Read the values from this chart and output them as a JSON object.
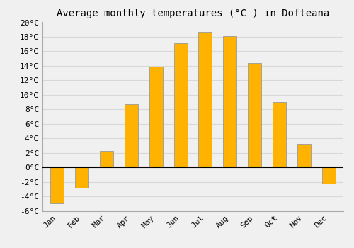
{
  "title": "Average monthly temperatures (°C ) in Dofteana",
  "months": [
    "Jan",
    "Feb",
    "Mar",
    "Apr",
    "May",
    "Jun",
    "Jul",
    "Aug",
    "Sep",
    "Oct",
    "Nov",
    "Dec"
  ],
  "values": [
    -5.0,
    -2.8,
    2.3,
    8.7,
    13.9,
    17.1,
    18.7,
    18.1,
    14.4,
    9.0,
    3.2,
    -2.2
  ],
  "bar_color_top": "#FFBB33",
  "bar_color_bottom": "#FFA500",
  "bar_edge_color": "#999999",
  "ylim": [
    -6,
    20
  ],
  "yticks": [
    -6,
    -4,
    -2,
    0,
    2,
    4,
    6,
    8,
    10,
    12,
    14,
    16,
    18,
    20
  ],
  "ytick_labels": [
    "-6°C",
    "-4°C",
    "-2°C",
    "0°C",
    "2°C",
    "4°C",
    "6°C",
    "8°C",
    "10°C",
    "12°C",
    "14°C",
    "16°C",
    "18°C",
    "20°C"
  ],
  "background_color": "#f0f0f0",
  "grid_color": "#d8d8d8",
  "title_fontsize": 10,
  "tick_fontsize": 8,
  "bar_width": 0.55
}
